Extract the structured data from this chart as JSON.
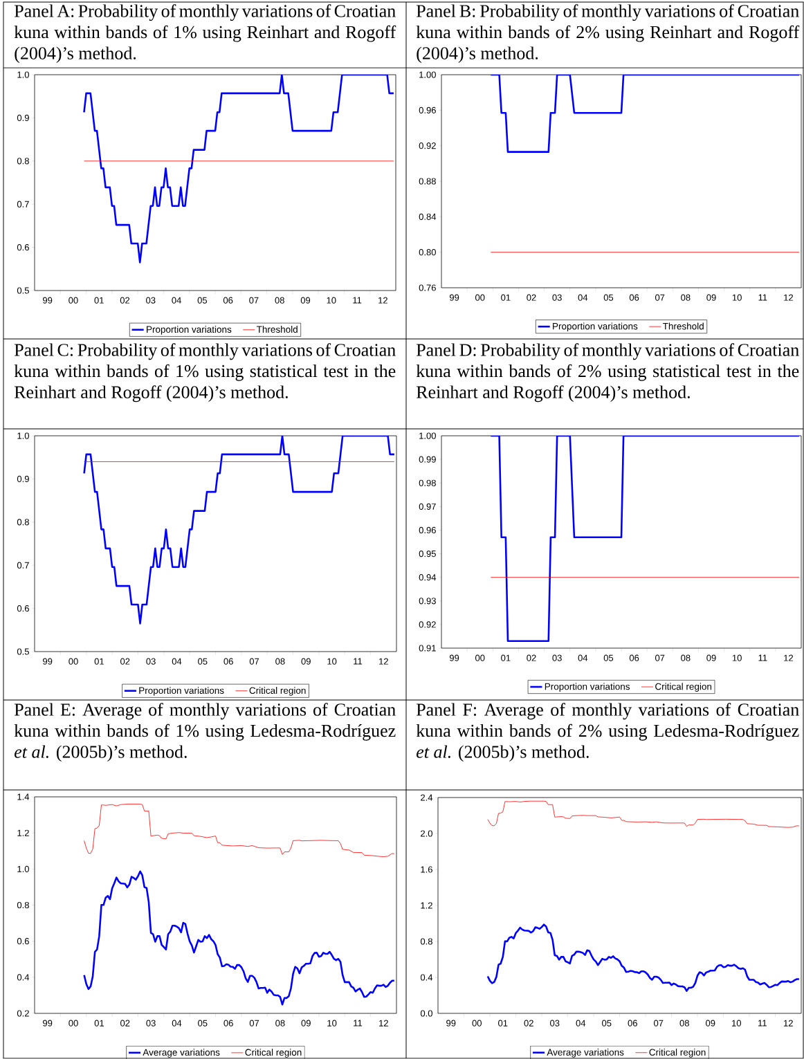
{
  "chart_data": [
    {
      "type": "line",
      "title": "Panel A: Probability of monthly variations of Croatian kuna within bands of 1% using Reinhart and Rogoff (2004)’s method.",
      "xlim": [
        "1999-01",
        "2013-01"
      ],
      "xticks": [
        {
          "value": "1999-07",
          "label": "99"
        },
        {
          "value": "2000-07",
          "label": "00"
        },
        {
          "value": "2001-07",
          "label": "01"
        },
        {
          "value": "2002-07",
          "label": "02"
        },
        {
          "value": "2003-07",
          "label": "03"
        },
        {
          "value": "2004-07",
          "label": "04"
        },
        {
          "value": "2005-07",
          "label": "05"
        },
        {
          "value": "2006-07",
          "label": "06"
        },
        {
          "value": "2007-07",
          "label": "07"
        },
        {
          "value": "2008-07",
          "label": "08"
        },
        {
          "value": "2009-07",
          "label": "09"
        },
        {
          "value": "2010-07",
          "label": "10"
        },
        {
          "value": "2011-07",
          "label": "11"
        },
        {
          "value": "2012-07",
          "label": "12"
        }
      ],
      "ylim": [
        0.5,
        1.0
      ],
      "yticks": [
        {
          "value": 0.5,
          "label": "0.5"
        },
        {
          "value": 0.6,
          "label": "0.6"
        },
        {
          "value": 0.7,
          "label": "0.7"
        },
        {
          "value": 0.8,
          "label": "0.8"
        },
        {
          "value": 0.9,
          "label": "0.9"
        },
        {
          "value": 1.0,
          "label": "1.0"
        }
      ],
      "legend": "bottom",
      "series": [
        {
          "name": "Proportion variations",
          "color": "#0000ff",
          "x": [
            "2000-12",
            "2001-01",
            "2001-03",
            "2001-05",
            "2001-06",
            "2001-08",
            "2001-09",
            "2001-10",
            "2001-12",
            "2002-01",
            "2002-02",
            "2002-03",
            "2002-09",
            "2002-10",
            "2003-01",
            "2003-02",
            "2003-03",
            "2003-05",
            "2003-07",
            "2003-08",
            "2003-09",
            "2003-10",
            "2003-11",
            "2003-12",
            "2004-01",
            "2004-02",
            "2004-03",
            "2004-04",
            "2004-05",
            "2004-08",
            "2004-09",
            "2004-10",
            "2004-11",
            "2005-01",
            "2005-02",
            "2005-03",
            "2005-08",
            "2005-09",
            "2006-01",
            "2006-02",
            "2006-03",
            "2006-04",
            "2008-07",
            "2008-08",
            "2008-09",
            "2008-11",
            "2009-01",
            "2010-07",
            "2010-08",
            "2010-10",
            "2010-12",
            "2012-09",
            "2012-10",
            "2012-12"
          ],
          "values": [
            0.913,
            0.957,
            0.957,
            0.87,
            0.87,
            0.783,
            0.783,
            0.739,
            0.739,
            0.696,
            0.696,
            0.652,
            0.652,
            0.609,
            0.609,
            0.565,
            0.609,
            0.609,
            0.696,
            0.696,
            0.739,
            0.696,
            0.696,
            0.739,
            0.739,
            0.783,
            0.739,
            0.739,
            0.696,
            0.696,
            0.739,
            0.696,
            0.696,
            0.783,
            0.783,
            0.826,
            0.826,
            0.87,
            0.87,
            0.913,
            0.913,
            0.957,
            0.957,
            1.0,
            0.957,
            0.957,
            0.87,
            0.87,
            0.913,
            0.913,
            1.0,
            1.0,
            0.957,
            0.957
          ]
        },
        {
          "name": "Threshold",
          "color": "#ff0000",
          "x": [
            "2000-12",
            "2012-12"
          ],
          "values": [
            0.8,
            0.8
          ]
        }
      ]
    },
    {
      "type": "line",
      "title": "Panel B: Probability of monthly variations of Croatian kuna within bands of 2% using Reinhart and Rogoff (2004)’s method.",
      "xlim": [
        "1999-01",
        "2013-01"
      ],
      "xticks": [
        {
          "value": "1999-07",
          "label": "99"
        },
        {
          "value": "2000-07",
          "label": "00"
        },
        {
          "value": "2001-07",
          "label": "01"
        },
        {
          "value": "2002-07",
          "label": "02"
        },
        {
          "value": "2003-07",
          "label": "03"
        },
        {
          "value": "2004-07",
          "label": "04"
        },
        {
          "value": "2005-07",
          "label": "05"
        },
        {
          "value": "2006-07",
          "label": "06"
        },
        {
          "value": "2007-07",
          "label": "07"
        },
        {
          "value": "2008-07",
          "label": "08"
        },
        {
          "value": "2009-07",
          "label": "09"
        },
        {
          "value": "2010-07",
          "label": "10"
        },
        {
          "value": "2011-07",
          "label": "11"
        },
        {
          "value": "2012-07",
          "label": "12"
        }
      ],
      "ylim": [
        0.76,
        1.0
      ],
      "yticks": [
        {
          "value": 0.76,
          "label": "0.76"
        },
        {
          "value": 0.8,
          "label": "0.80"
        },
        {
          "value": 0.84,
          "label": "0.84"
        },
        {
          "value": 0.88,
          "label": "0.88"
        },
        {
          "value": 0.92,
          "label": "0.92"
        },
        {
          "value": 0.96,
          "label": "0.96"
        },
        {
          "value": 1.0,
          "label": "1.00"
        }
      ],
      "legend": "bottom",
      "series": [
        {
          "name": "Proportion variations",
          "color": "#0000ff",
          "x": [
            "2000-12",
            "2001-04",
            "2001-05",
            "2001-07",
            "2001-08",
            "2003-03",
            "2003-04",
            "2003-06",
            "2003-07",
            "2004-01",
            "2004-03",
            "2006-01",
            "2006-02",
            "2012-12"
          ],
          "values": [
            1.0,
            1.0,
            0.957,
            0.957,
            0.913,
            0.913,
            0.957,
            0.957,
            1.0,
            1.0,
            0.957,
            0.957,
            1.0,
            1.0
          ]
        },
        {
          "name": "Threshold",
          "color": "#ff0000",
          "x": [
            "2000-12",
            "2012-12"
          ],
          "values": [
            0.8,
            0.8
          ]
        }
      ]
    },
    {
      "type": "line",
      "title": "Panel C: Probability of monthly variations of Croatian kuna within bands of 1% using statistical test in the Reinhart and Rogoff (2004)’s method.",
      "xlim": [
        "1999-01",
        "2013-01"
      ],
      "xticks": [
        {
          "value": "1999-07",
          "label": "99"
        },
        {
          "value": "2000-07",
          "label": "00"
        },
        {
          "value": "2001-07",
          "label": "01"
        },
        {
          "value": "2002-07",
          "label": "02"
        },
        {
          "value": "2003-07",
          "label": "03"
        },
        {
          "value": "2004-07",
          "label": "04"
        },
        {
          "value": "2005-07",
          "label": "05"
        },
        {
          "value": "2006-07",
          "label": "06"
        },
        {
          "value": "2007-07",
          "label": "07"
        },
        {
          "value": "2008-07",
          "label": "08"
        },
        {
          "value": "2009-07",
          "label": "09"
        },
        {
          "value": "2010-07",
          "label": "10"
        },
        {
          "value": "2011-07",
          "label": "11"
        },
        {
          "value": "2012-07",
          "label": "12"
        }
      ],
      "ylim": [
        0.5,
        1.0
      ],
      "yticks": [
        {
          "value": 0.5,
          "label": "0.5"
        },
        {
          "value": 0.6,
          "label": "0.6"
        },
        {
          "value": 0.7,
          "label": "0.7"
        },
        {
          "value": 0.8,
          "label": "0.8"
        },
        {
          "value": 0.9,
          "label": "0.9"
        },
        {
          "value": 1.0,
          "label": "1.0"
        }
      ],
      "legend": "bottom",
      "series": [
        {
          "name": "Proportion variations",
          "color": "#0000ff",
          "x": [
            "2000-12",
            "2001-01",
            "2001-03",
            "2001-05",
            "2001-06",
            "2001-08",
            "2001-09",
            "2001-10",
            "2001-12",
            "2002-01",
            "2002-02",
            "2002-03",
            "2002-09",
            "2002-10",
            "2003-01",
            "2003-02",
            "2003-03",
            "2003-05",
            "2003-07",
            "2003-08",
            "2003-09",
            "2003-10",
            "2003-11",
            "2003-12",
            "2004-01",
            "2004-02",
            "2004-03",
            "2004-04",
            "2004-05",
            "2004-08",
            "2004-09",
            "2004-10",
            "2004-11",
            "2005-01",
            "2005-02",
            "2005-03",
            "2005-08",
            "2005-09",
            "2006-01",
            "2006-02",
            "2006-03",
            "2006-04",
            "2008-07",
            "2008-08",
            "2008-09",
            "2008-11",
            "2009-01",
            "2010-07",
            "2010-08",
            "2010-10",
            "2010-12",
            "2012-09",
            "2012-10",
            "2012-12"
          ],
          "values": [
            0.913,
            0.957,
            0.957,
            0.87,
            0.87,
            0.783,
            0.783,
            0.739,
            0.739,
            0.696,
            0.696,
            0.652,
            0.652,
            0.609,
            0.609,
            0.565,
            0.609,
            0.609,
            0.696,
            0.696,
            0.739,
            0.696,
            0.696,
            0.739,
            0.739,
            0.783,
            0.739,
            0.739,
            0.696,
            0.696,
            0.739,
            0.696,
            0.696,
            0.783,
            0.783,
            0.826,
            0.826,
            0.87,
            0.87,
            0.913,
            0.913,
            0.957,
            0.957,
            1.0,
            0.957,
            0.957,
            0.87,
            0.87,
            0.913,
            0.913,
            1.0,
            1.0,
            0.957,
            0.957
          ]
        },
        {
          "name": "Critical region",
          "color": "#ff0000",
          "x": [
            "2000-12",
            "2012-12"
          ],
          "values": [
            0.94,
            0.94
          ]
        }
      ]
    },
    {
      "type": "line",
      "title": "Panel D: Probability of monthly variations of Croatian kuna within bands of 2% using statistical test in the Reinhart and Rogoff (2004)’s method.",
      "xlim": [
        "1999-01",
        "2013-01"
      ],
      "xticks": [
        {
          "value": "1999-07",
          "label": "99"
        },
        {
          "value": "2000-07",
          "label": "00"
        },
        {
          "value": "2001-07",
          "label": "01"
        },
        {
          "value": "2002-07",
          "label": "02"
        },
        {
          "value": "2003-07",
          "label": "03"
        },
        {
          "value": "2004-07",
          "label": "04"
        },
        {
          "value": "2005-07",
          "label": "05"
        },
        {
          "value": "2006-07",
          "label": "06"
        },
        {
          "value": "2007-07",
          "label": "07"
        },
        {
          "value": "2008-07",
          "label": "08"
        },
        {
          "value": "2009-07",
          "label": "09"
        },
        {
          "value": "2010-07",
          "label": "10"
        },
        {
          "value": "2011-07",
          "label": "11"
        },
        {
          "value": "2012-07",
          "label": "12"
        }
      ],
      "ylim": [
        0.91,
        1.0
      ],
      "yticks": [
        {
          "value": 0.91,
          "label": "0.91"
        },
        {
          "value": 0.92,
          "label": "0.92"
        },
        {
          "value": 0.93,
          "label": "0.93"
        },
        {
          "value": 0.94,
          "label": "0.94"
        },
        {
          "value": 0.95,
          "label": "0.95"
        },
        {
          "value": 0.96,
          "label": "0.96"
        },
        {
          "value": 0.97,
          "label": "0.97"
        },
        {
          "value": 0.98,
          "label": "0.98"
        },
        {
          "value": 0.99,
          "label": "0.99"
        },
        {
          "value": 1.0,
          "label": "1.00"
        }
      ],
      "legend": "bottom",
      "series": [
        {
          "name": "Proportion variations",
          "color": "#0000ff",
          "x": [
            "2000-12",
            "2001-04",
            "2001-05",
            "2001-07",
            "2001-08",
            "2003-03",
            "2003-04",
            "2003-06",
            "2003-07",
            "2004-01",
            "2004-03",
            "2006-01",
            "2006-02",
            "2012-12"
          ],
          "values": [
            1.0,
            1.0,
            0.957,
            0.957,
            0.913,
            0.913,
            0.957,
            0.957,
            1.0,
            1.0,
            0.957,
            0.957,
            1.0,
            1.0
          ]
        },
        {
          "name": "Critical region",
          "color": "#ff0000",
          "x": [
            "2000-12",
            "2012-12"
          ],
          "values": [
            0.94,
            0.94
          ]
        }
      ]
    },
    {
      "type": "line",
      "title": "Panel E: Average of monthly variations of Croatian kuna within bands of 1% using Ledesma-Rodríguez *et al.* (2005b)’s method.",
      "xlim": [
        "1999-01",
        "2013-01"
      ],
      "xticks": [
        {
          "value": "1999-07",
          "label": "99"
        },
        {
          "value": "2000-07",
          "label": "00"
        },
        {
          "value": "2001-07",
          "label": "01"
        },
        {
          "value": "2002-07",
          "label": "02"
        },
        {
          "value": "2003-07",
          "label": "03"
        },
        {
          "value": "2004-07",
          "label": "04"
        },
        {
          "value": "2005-07",
          "label": "05"
        },
        {
          "value": "2006-07",
          "label": "06"
        },
        {
          "value": "2007-07",
          "label": "07"
        },
        {
          "value": "2008-07",
          "label": "08"
        },
        {
          "value": "2009-07",
          "label": "09"
        },
        {
          "value": "2010-07",
          "label": "10"
        },
        {
          "value": "2011-07",
          "label": "11"
        },
        {
          "value": "2012-07",
          "label": "12"
        }
      ],
      "ylim": [
        0.2,
        1.4
      ],
      "yticks": [
        {
          "value": 0.2,
          "label": "0.2"
        },
        {
          "value": 0.4,
          "label": "0.4"
        },
        {
          "value": 0.6,
          "label": "0.6"
        },
        {
          "value": 0.8,
          "label": "0.8"
        },
        {
          "value": 1.0,
          "label": "1.0"
        },
        {
          "value": 1.2,
          "label": "1.2"
        },
        {
          "value": 1.4,
          "label": "1.4"
        }
      ],
      "legend": "bottom",
      "series": [
        {
          "name": "Average variations",
          "color": "#0000ff",
          "x": [
            "2000-12",
            "2001-01",
            "2001-02",
            "2001-03",
            "2001-04",
            "2001-05",
            "2001-06",
            "2001-07",
            "2001-08",
            "2001-09",
            "2001-10",
            "2001-11",
            "2001-12",
            "2002-01",
            "2002-02",
            "2002-03",
            "2002-04",
            "2002-05",
            "2002-07",
            "2002-08",
            "2002-09",
            "2002-10",
            "2002-11",
            "2002-12",
            "2003-01",
            "2003-02",
            "2003-03",
            "2003-04",
            "2003-05",
            "2003-06",
            "2003-07",
            "2003-08",
            "2003-09",
            "2003-10",
            "2003-11",
            "2003-12",
            "2004-01",
            "2004-02",
            "2004-03",
            "2004-04",
            "2004-05",
            "2004-06",
            "2004-07",
            "2004-08",
            "2004-09",
            "2004-10",
            "2004-11",
            "2004-12",
            "2005-01",
            "2005-02",
            "2005-03",
            "2005-04",
            "2005-05",
            "2005-06",
            "2005-07",
            "2005-08",
            "2005-09",
            "2005-10",
            "2005-11",
            "2005-12",
            "2006-01",
            "2006-02",
            "2006-03",
            "2006-04",
            "2006-05",
            "2006-06",
            "2006-07",
            "2006-08",
            "2006-09",
            "2006-10",
            "2006-11",
            "2006-12",
            "2007-01",
            "2007-02",
            "2007-03",
            "2007-04",
            "2007-05",
            "2007-06",
            "2007-07",
            "2007-08",
            "2007-09",
            "2007-10",
            "2007-11",
            "2007-12",
            "2008-01",
            "2008-02",
            "2008-03",
            "2008-04",
            "2008-05",
            "2008-06",
            "2008-07",
            "2008-08",
            "2008-09",
            "2008-10",
            "2008-11",
            "2008-12",
            "2009-01",
            "2009-02",
            "2009-03",
            "2009-04",
            "2009-05",
            "2009-06",
            "2009-07",
            "2009-08",
            "2009-09",
            "2009-10",
            "2009-11",
            "2009-12",
            "2010-01",
            "2010-02",
            "2010-03",
            "2010-04",
            "2010-05",
            "2010-06",
            "2010-07",
            "2010-08",
            "2010-09",
            "2010-10",
            "2010-11",
            "2010-12",
            "2011-01",
            "2011-02",
            "2011-03",
            "2011-04",
            "2011-05",
            "2011-06",
            "2011-07",
            "2011-08",
            "2011-09",
            "2011-10",
            "2011-11",
            "2011-12",
            "2012-01",
            "2012-02",
            "2012-03",
            "2012-04",
            "2012-05",
            "2012-06",
            "2012-07",
            "2012-08",
            "2012-09",
            "2012-10",
            "2012-11",
            "2012-12"
          ],
          "values": [
            0.412,
            0.363,
            0.335,
            0.349,
            0.405,
            0.541,
            0.554,
            0.628,
            0.801,
            0.801,
            0.841,
            0.851,
            0.833,
            0.893,
            0.921,
            0.953,
            0.932,
            0.921,
            0.918,
            0.898,
            0.914,
            0.957,
            0.951,
            0.941,
            0.96,
            0.987,
            0.965,
            0.9,
            0.895,
            0.816,
            0.646,
            0.639,
            0.597,
            0.628,
            0.628,
            0.579,
            0.568,
            0.554,
            0.639,
            0.653,
            0.686,
            0.686,
            0.681,
            0.672,
            0.649,
            0.702,
            0.695,
            0.642,
            0.599,
            0.576,
            0.537,
            0.572,
            0.607,
            0.597,
            0.599,
            0.628,
            0.617,
            0.635,
            0.611,
            0.6,
            0.579,
            0.528,
            0.509,
            0.461,
            0.463,
            0.472,
            0.469,
            0.459,
            0.458,
            0.447,
            0.468,
            0.468,
            0.456,
            0.433,
            0.394,
            0.374,
            0.408,
            0.408,
            0.398,
            0.374,
            0.338,
            0.341,
            0.341,
            0.343,
            0.314,
            0.332,
            0.321,
            0.303,
            0.3,
            0.3,
            0.291,
            0.249,
            0.285,
            0.285,
            0.295,
            0.338,
            0.419,
            0.458,
            0.449,
            0.422,
            0.455,
            0.463,
            0.475,
            0.475,
            0.477,
            0.517,
            0.535,
            0.536,
            0.514,
            0.517,
            0.536,
            0.53,
            0.53,
            0.541,
            0.523,
            0.502,
            0.495,
            0.502,
            0.486,
            0.412,
            0.373,
            0.373,
            0.373,
            0.349,
            0.342,
            0.321,
            0.331,
            0.338,
            0.318,
            0.291,
            0.293,
            0.305,
            0.318,
            0.314,
            0.338,
            0.355,
            0.353,
            0.353,
            0.359,
            0.346,
            0.353,
            0.37,
            0.381,
            0.381
          ]
        },
        {
          "name": "Critical region",
          "color": "#ff0000",
          "x": [
            "2000-12",
            "2001-01",
            "2001-02",
            "2001-03",
            "2001-04",
            "2001-05",
            "2001-06",
            "2001-07",
            "2001-08",
            "2001-09",
            "2001-10",
            "2002-01",
            "2002-03",
            "2002-05",
            "2002-08",
            "2002-12",
            "2003-02",
            "2003-03",
            "2003-04",
            "2003-06",
            "2003-07",
            "2003-10",
            "2003-11",
            "2003-12",
            "2004-02",
            "2004-03",
            "2004-05",
            "2004-08",
            "2004-10",
            "2005-02",
            "2005-03",
            "2005-06",
            "2005-09",
            "2005-11",
            "2006-01",
            "2006-02",
            "2006-03",
            "2006-04",
            "2006-09",
            "2007-01",
            "2007-04",
            "2007-06",
            "2007-09",
            "2008-01",
            "2008-06",
            "2008-07",
            "2008-08",
            "2008-09",
            "2008-11",
            "2008-12",
            "2009-01",
            "2009-04",
            "2009-05",
            "2010-02",
            "2010-08",
            "2010-10",
            "2010-11",
            "2010-12",
            "2011-03",
            "2011-05",
            "2011-09",
            "2011-10",
            "2012-02",
            "2012-05",
            "2012-07",
            "2012-09",
            "2012-11",
            "2012-12"
          ],
          "values": [
            1.157,
            1.116,
            1.088,
            1.086,
            1.111,
            1.224,
            1.227,
            1.241,
            1.355,
            1.355,
            1.353,
            1.357,
            1.35,
            1.357,
            1.36,
            1.36,
            1.36,
            1.357,
            1.321,
            1.321,
            1.183,
            1.188,
            1.185,
            1.17,
            1.167,
            1.195,
            1.199,
            1.202,
            1.199,
            1.199,
            1.185,
            1.181,
            1.174,
            1.178,
            1.183,
            1.146,
            1.146,
            1.132,
            1.128,
            1.13,
            1.125,
            1.13,
            1.118,
            1.116,
            1.117,
            1.116,
            1.081,
            1.095,
            1.095,
            1.116,
            1.157,
            1.159,
            1.156,
            1.159,
            1.157,
            1.157,
            1.141,
            1.109,
            1.105,
            1.092,
            1.091,
            1.077,
            1.074,
            1.07,
            1.068,
            1.071,
            1.086,
            1.085
          ]
        }
      ]
    },
    {
      "type": "line",
      "title": "Panel F: Average of monthly variations of Croatian kuna within bands of 2% using Ledesma-Rodríguez *et al.* (2005b)’s method.",
      "xlim": [
        "1999-01",
        "2013-01"
      ],
      "xticks": [
        {
          "value": "1999-07",
          "label": "99"
        },
        {
          "value": "2000-07",
          "label": "00"
        },
        {
          "value": "2001-07",
          "label": "01"
        },
        {
          "value": "2002-07",
          "label": "02"
        },
        {
          "value": "2003-07",
          "label": "03"
        },
        {
          "value": "2004-07",
          "label": "04"
        },
        {
          "value": "2005-07",
          "label": "05"
        },
        {
          "value": "2006-07",
          "label": "06"
        },
        {
          "value": "2007-07",
          "label": "07"
        },
        {
          "value": "2008-07",
          "label": "08"
        },
        {
          "value": "2009-07",
          "label": "09"
        },
        {
          "value": "2010-07",
          "label": "10"
        },
        {
          "value": "2011-07",
          "label": "11"
        },
        {
          "value": "2012-07",
          "label": "12"
        }
      ],
      "ylim": [
        0.0,
        2.4
      ],
      "yticks": [
        {
          "value": 0.0,
          "label": "0.0"
        },
        {
          "value": 0.4,
          "label": "0.4"
        },
        {
          "value": 0.8,
          "label": "0.8"
        },
        {
          "value": 1.2,
          "label": "1.2"
        },
        {
          "value": 1.6,
          "label": "1.6"
        },
        {
          "value": 2.0,
          "label": "2.0"
        },
        {
          "value": 2.4,
          "label": "2.4"
        }
      ],
      "legend": "bottom",
      "series": [
        {
          "name": "Average variations",
          "color": "#0000ff",
          "x": [
            "2000-12",
            "2001-01",
            "2001-02",
            "2001-03",
            "2001-04",
            "2001-05",
            "2001-06",
            "2001-07",
            "2001-08",
            "2001-09",
            "2001-10",
            "2001-11",
            "2001-12",
            "2002-01",
            "2002-02",
            "2002-03",
            "2002-04",
            "2002-05",
            "2002-07",
            "2002-08",
            "2002-09",
            "2002-10",
            "2002-11",
            "2002-12",
            "2003-01",
            "2003-02",
            "2003-03",
            "2003-04",
            "2003-05",
            "2003-06",
            "2003-07",
            "2003-08",
            "2003-09",
            "2003-10",
            "2003-11",
            "2003-12",
            "2004-01",
            "2004-02",
            "2004-03",
            "2004-04",
            "2004-05",
            "2004-06",
            "2004-07",
            "2004-08",
            "2004-09",
            "2004-10",
            "2004-11",
            "2004-12",
            "2005-01",
            "2005-02",
            "2005-03",
            "2005-04",
            "2005-05",
            "2005-06",
            "2005-07",
            "2005-08",
            "2005-09",
            "2005-10",
            "2005-11",
            "2005-12",
            "2006-01",
            "2006-02",
            "2006-03",
            "2006-04",
            "2006-05",
            "2006-06",
            "2006-07",
            "2006-08",
            "2006-09",
            "2006-10",
            "2006-11",
            "2006-12",
            "2007-01",
            "2007-02",
            "2007-03",
            "2007-04",
            "2007-05",
            "2007-06",
            "2007-07",
            "2007-08",
            "2007-09",
            "2007-10",
            "2007-11",
            "2007-12",
            "2008-01",
            "2008-02",
            "2008-03",
            "2008-04",
            "2008-05",
            "2008-06",
            "2008-07",
            "2008-08",
            "2008-09",
            "2008-10",
            "2008-11",
            "2008-12",
            "2009-01",
            "2009-02",
            "2009-03",
            "2009-04",
            "2009-05",
            "2009-06",
            "2009-07",
            "2009-08",
            "2009-09",
            "2009-10",
            "2009-11",
            "2009-12",
            "2010-01",
            "2010-02",
            "2010-03",
            "2010-04",
            "2010-05",
            "2010-06",
            "2010-07",
            "2010-08",
            "2010-09",
            "2010-10",
            "2010-11",
            "2010-12",
            "2011-01",
            "2011-02",
            "2011-03",
            "2011-04",
            "2011-05",
            "2011-06",
            "2011-07",
            "2011-08",
            "2011-09",
            "2011-10",
            "2011-11",
            "2011-12",
            "2012-01",
            "2012-02",
            "2012-03",
            "2012-04",
            "2012-05",
            "2012-06",
            "2012-07",
            "2012-08",
            "2012-09",
            "2012-10",
            "2012-11",
            "2012-12"
          ],
          "values": [
            0.412,
            0.363,
            0.335,
            0.349,
            0.405,
            0.541,
            0.554,
            0.628,
            0.801,
            0.801,
            0.841,
            0.851,
            0.833,
            0.893,
            0.921,
            0.953,
            0.932,
            0.921,
            0.918,
            0.898,
            0.914,
            0.957,
            0.951,
            0.941,
            0.96,
            0.987,
            0.965,
            0.9,
            0.895,
            0.816,
            0.646,
            0.639,
            0.597,
            0.628,
            0.628,
            0.579,
            0.568,
            0.554,
            0.639,
            0.653,
            0.686,
            0.686,
            0.681,
            0.672,
            0.649,
            0.702,
            0.695,
            0.642,
            0.599,
            0.576,
            0.537,
            0.572,
            0.607,
            0.597,
            0.599,
            0.628,
            0.617,
            0.635,
            0.611,
            0.6,
            0.579,
            0.528,
            0.509,
            0.461,
            0.463,
            0.472,
            0.469,
            0.459,
            0.458,
            0.447,
            0.468,
            0.468,
            0.456,
            0.433,
            0.394,
            0.374,
            0.408,
            0.408,
            0.398,
            0.374,
            0.338,
            0.341,
            0.341,
            0.343,
            0.314,
            0.332,
            0.321,
            0.303,
            0.3,
            0.3,
            0.291,
            0.249,
            0.285,
            0.285,
            0.295,
            0.338,
            0.419,
            0.458,
            0.449,
            0.422,
            0.455,
            0.463,
            0.475,
            0.475,
            0.477,
            0.517,
            0.535,
            0.536,
            0.514,
            0.517,
            0.536,
            0.53,
            0.53,
            0.541,
            0.523,
            0.502,
            0.495,
            0.502,
            0.486,
            0.412,
            0.373,
            0.373,
            0.373,
            0.349,
            0.342,
            0.321,
            0.331,
            0.338,
            0.318,
            0.291,
            0.293,
            0.305,
            0.318,
            0.314,
            0.338,
            0.355,
            0.353,
            0.353,
            0.359,
            0.346,
            0.353,
            0.37,
            0.381,
            0.381
          ]
        },
        {
          "name": "Critical region",
          "color": "#ff0000",
          "x": [
            "2000-12",
            "2001-01",
            "2001-02",
            "2001-03",
            "2001-04",
            "2001-05",
            "2001-06",
            "2001-07",
            "2001-08",
            "2001-09",
            "2001-10",
            "2002-01",
            "2002-03",
            "2002-05",
            "2002-08",
            "2002-12",
            "2003-02",
            "2003-03",
            "2003-04",
            "2003-06",
            "2003-07",
            "2003-10",
            "2003-11",
            "2003-12",
            "2004-02",
            "2004-03",
            "2004-05",
            "2004-08",
            "2004-10",
            "2005-02",
            "2005-03",
            "2005-06",
            "2005-09",
            "2005-11",
            "2006-01",
            "2006-02",
            "2006-03",
            "2006-04",
            "2006-09",
            "2007-01",
            "2007-04",
            "2007-06",
            "2007-09",
            "2008-01",
            "2008-06",
            "2008-07",
            "2008-08",
            "2008-09",
            "2008-11",
            "2008-12",
            "2009-01",
            "2009-04",
            "2009-05",
            "2010-02",
            "2010-08",
            "2010-10",
            "2010-11",
            "2010-12",
            "2011-03",
            "2011-05",
            "2011-09",
            "2011-10",
            "2012-02",
            "2012-05",
            "2012-07",
            "2012-09",
            "2012-11",
            "2012-12"
          ],
          "values": [
            2.157,
            2.116,
            2.088,
            2.086,
            2.111,
            2.224,
            2.227,
            2.241,
            2.355,
            2.355,
            2.353,
            2.357,
            2.35,
            2.357,
            2.36,
            2.36,
            2.36,
            2.357,
            2.321,
            2.321,
            2.183,
            2.188,
            2.185,
            2.17,
            2.167,
            2.195,
            2.199,
            2.202,
            2.199,
            2.199,
            2.185,
            2.181,
            2.174,
            2.178,
            2.183,
            2.146,
            2.146,
            2.132,
            2.128,
            2.13,
            2.125,
            2.13,
            2.118,
            2.116,
            2.117,
            2.116,
            2.081,
            2.095,
            2.095,
            2.116,
            2.157,
            2.159,
            2.156,
            2.159,
            2.157,
            2.157,
            2.141,
            2.109,
            2.105,
            2.092,
            2.091,
            2.077,
            2.074,
            2.07,
            2.068,
            2.071,
            2.086,
            2.085
          ]
        }
      ]
    }
  ]
}
